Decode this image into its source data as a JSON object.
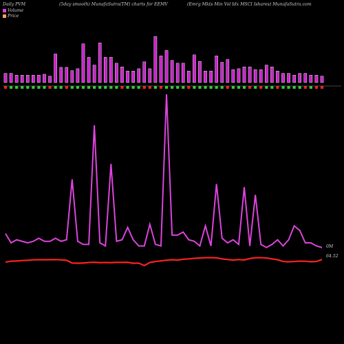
{
  "header": {
    "left": "Daily PVM",
    "middle": "(5day smooth) MunafaSutra(TM) charts for EEMV",
    "right": "(Emrg Mkts Min Vol Idx MSCI Ishares) MunafaSutra.com"
  },
  "legend": [
    {
      "label": "Volume",
      "color": "#e040e0"
    },
    {
      "label": "Price",
      "color": "#f4a460"
    }
  ],
  "colors": {
    "volume_bar": "#cc22cc",
    "volume_up": "#33cc33",
    "volume_down": "#ee2222",
    "volume_line": "#dd44dd",
    "price_line": "#ff2222",
    "axis": "#888888"
  },
  "end_labels": {
    "volume": "0M",
    "price": "64.52"
  },
  "chart_data": {
    "type": "line",
    "x_count": 58,
    "series": [
      {
        "name": "Volume",
        "values": [
          0.1,
          0.04,
          0.06,
          0.05,
          0.04,
          0.05,
          0.07,
          0.05,
          0.05,
          0.07,
          0.05,
          0.06,
          0.45,
          0.05,
          0.03,
          0.03,
          0.8,
          0.04,
          0.02,
          0.55,
          0.05,
          0.06,
          0.14,
          0.06,
          0.02,
          0.02,
          0.16,
          0.03,
          0.02,
          1.0,
          0.09,
          0.09,
          0.11,
          0.06,
          0.05,
          0.02,
          0.15,
          0.02,
          0.42,
          0.07,
          0.04,
          0.06,
          0.03,
          0.4,
          0.02,
          0.35,
          0.03,
          0.01,
          0.03,
          0.06,
          0.02,
          0.06,
          0.15,
          0.12,
          0.04,
          0.04,
          0.02,
          0.01
        ]
      },
      {
        "name": "Price",
        "values": [
          0.3,
          0.38,
          0.39,
          0.43,
          0.45,
          0.49,
          0.5,
          0.5,
          0.5,
          0.51,
          0.49,
          0.45,
          0.22,
          0.2,
          0.22,
          0.26,
          0.28,
          0.25,
          0.26,
          0.25,
          0.27,
          0.27,
          0.28,
          0.2,
          0.21,
          0.0,
          0.26,
          0.35,
          0.4,
          0.46,
          0.5,
          0.47,
          0.54,
          0.57,
          0.62,
          0.65,
          0.67,
          0.68,
          0.66,
          0.57,
          0.52,
          0.47,
          0.51,
          0.48,
          0.6,
          0.67,
          0.68,
          0.65,
          0.57,
          0.5,
          0.35,
          0.32,
          0.35,
          0.38,
          0.37,
          0.33,
          0.35,
          0.52
        ]
      }
    ],
    "bars": {
      "heights": [
        0.2,
        0.2,
        0.16,
        0.16,
        0.16,
        0.16,
        0.16,
        0.18,
        0.14,
        0.62,
        0.33,
        0.33,
        0.26,
        0.3,
        0.84,
        0.55,
        0.38,
        0.86,
        0.55,
        0.55,
        0.42,
        0.34,
        0.25,
        0.25,
        0.3,
        0.45,
        0.3,
        1.0,
        0.58,
        0.7,
        0.48,
        0.42,
        0.42,
        0.25,
        0.6,
        0.46,
        0.25,
        0.25,
        0.58,
        0.44,
        0.5,
        0.28,
        0.3,
        0.34,
        0.34,
        0.28,
        0.28,
        0.38,
        0.34,
        0.25,
        0.2,
        0.2,
        0.16,
        0.2,
        0.2,
        0.16,
        0.16,
        0.14
      ],
      "direction": [
        -1,
        1,
        1,
        1,
        1,
        1,
        1,
        1,
        -1,
        1,
        1,
        -1,
        1,
        1,
        1,
        1,
        1,
        1,
        1,
        1,
        1,
        -1,
        1,
        1,
        1,
        -1,
        -1,
        1,
        -1,
        1,
        1,
        1,
        1,
        -1,
        1,
        1,
        1,
        1,
        1,
        1,
        -1,
        1,
        1,
        1,
        -1,
        1,
        -1,
        1,
        1,
        -1,
        1,
        1,
        1,
        1,
        -1,
        1,
        -1,
        -1
      ]
    }
  }
}
